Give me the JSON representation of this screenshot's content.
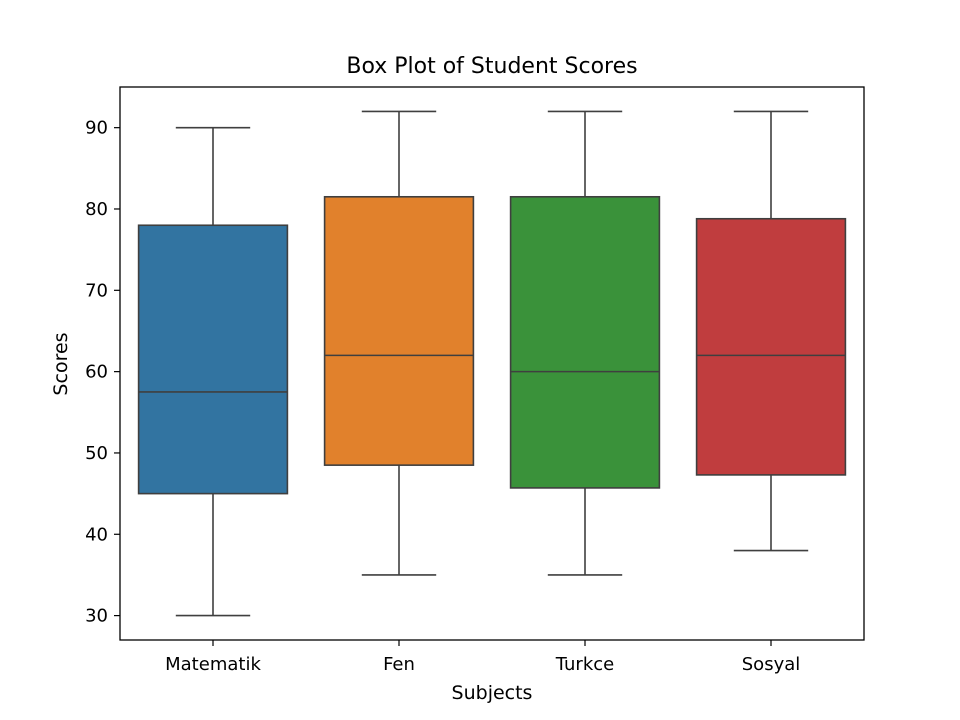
{
  "chart_data": {
    "type": "box",
    "title": "Box Plot of Student Scores",
    "xlabel": "Subjects",
    "ylabel": "Scores",
    "ylim": [
      27,
      95
    ],
    "yticks": [
      30,
      40,
      50,
      60,
      70,
      80,
      90
    ],
    "grid": false,
    "categories": [
      "Matematik",
      "Fen",
      "Turkce",
      "Sosyal"
    ],
    "boxes": [
      {
        "name": "Matematik",
        "whisker_low": 30,
        "q1": 45,
        "median": 57.5,
        "q3": 78,
        "whisker_high": 90,
        "color": "#3274a1"
      },
      {
        "name": "Fen",
        "whisker_low": 35,
        "q1": 48.5,
        "median": 62,
        "q3": 81.5,
        "whisker_high": 92,
        "color": "#e1812c"
      },
      {
        "name": "Turkce",
        "whisker_low": 35,
        "q1": 45.7,
        "median": 60,
        "q3": 81.5,
        "whisker_high": 92,
        "color": "#3a923a"
      },
      {
        "name": "Sosyal",
        "whisker_low": 38,
        "q1": 47.3,
        "median": 62,
        "q3": 78.8,
        "whisker_high": 92,
        "color": "#c03d3e"
      }
    ]
  }
}
